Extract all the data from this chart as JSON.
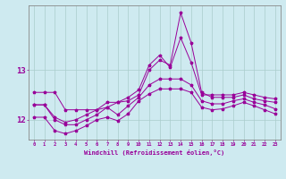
{
  "xlabel": "Windchill (Refroidissement éolien,°C)",
  "hours": [
    0,
    1,
    2,
    3,
    4,
    5,
    6,
    7,
    8,
    9,
    10,
    11,
    12,
    13,
    14,
    15,
    16,
    17,
    18,
    19,
    20,
    21,
    22,
    23
  ],
  "line1": [
    12.55,
    12.55,
    12.55,
    12.2,
    12.2,
    12.2,
    12.2,
    12.25,
    12.35,
    12.45,
    12.6,
    13.1,
    13.3,
    13.05,
    13.65,
    13.15,
    12.5,
    12.5,
    12.5,
    12.5,
    12.55,
    12.5,
    12.45,
    12.42
  ],
  "line2": [
    12.3,
    12.3,
    12.05,
    11.95,
    12.0,
    12.1,
    12.2,
    12.35,
    12.35,
    12.38,
    12.5,
    13.0,
    13.2,
    13.1,
    14.15,
    13.55,
    12.55,
    12.45,
    12.45,
    12.45,
    12.5,
    12.42,
    12.38,
    12.35
  ],
  "line3": [
    12.3,
    12.3,
    12.0,
    11.9,
    11.9,
    12.0,
    12.1,
    12.25,
    12.1,
    12.28,
    12.45,
    12.7,
    12.82,
    12.82,
    12.82,
    12.7,
    12.38,
    12.32,
    12.32,
    12.38,
    12.42,
    12.35,
    12.3,
    12.22
  ],
  "line4": [
    12.05,
    12.05,
    11.78,
    11.72,
    11.78,
    11.88,
    12.0,
    12.05,
    11.98,
    12.12,
    12.38,
    12.52,
    12.62,
    12.62,
    12.62,
    12.55,
    12.25,
    12.2,
    12.22,
    12.28,
    12.35,
    12.28,
    12.2,
    12.12
  ],
  "color": "#990099",
  "bg_color": "#ceeaf0",
  "grid_color": "#aacccc",
  "ylim": [
    11.6,
    14.3
  ],
  "yticks": [
    12,
    13
  ],
  "xticks": [
    0,
    1,
    2,
    3,
    4,
    5,
    6,
    7,
    8,
    9,
    10,
    11,
    12,
    13,
    14,
    15,
    16,
    17,
    18,
    19,
    20,
    21,
    22,
    23
  ]
}
